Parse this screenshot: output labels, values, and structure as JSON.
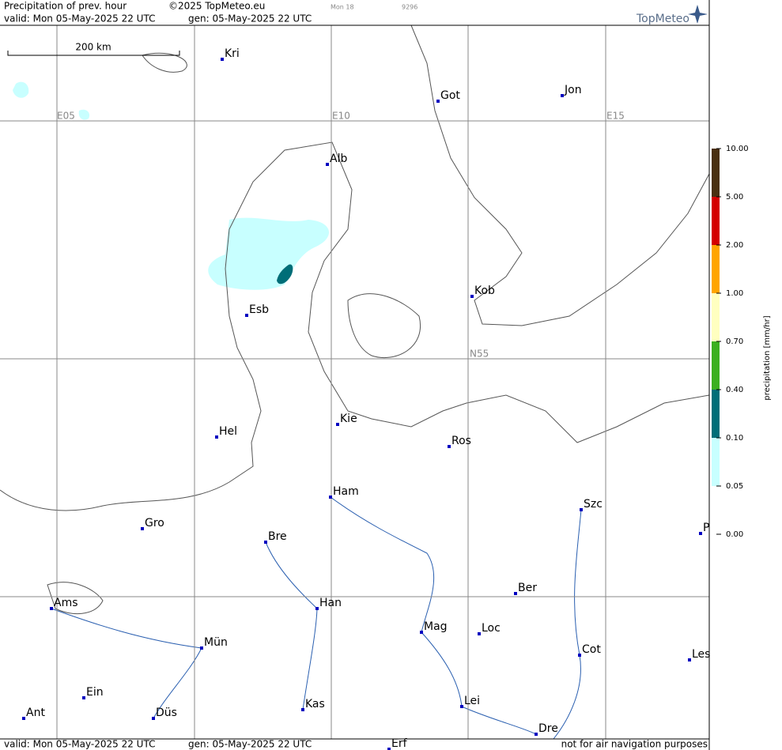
{
  "header": {
    "title": "Precipitation of prev. hour",
    "copyright": "©2025 TopMeteo.eu",
    "run": "Mon 18",
    "code": "9296",
    "valid": "valid:  Mon  05-May-2025  22 UTC",
    "generated": "gen: 05-May-2025 22 UTC",
    "logo": "TopMeteo"
  },
  "scale_bar": "200 km",
  "grid_labels": [
    "E05",
    "E10",
    "E15",
    "N55"
  ],
  "cities": [
    "Kri",
    "Got",
    "Jon",
    "Alb",
    "Kob",
    "Esb",
    "Kie",
    "Hel",
    "Ros",
    "Ham",
    "Szc",
    "Gro",
    "Bre",
    "P",
    "Ber",
    "Ams",
    "Han",
    "Mag",
    "Loc",
    "Mün",
    "Cot",
    "Les",
    "Ein",
    "Kas",
    "Lei",
    "Ant",
    "Düs",
    "Dre",
    "Erf"
  ],
  "legend": {
    "title": "precipitation [mm/hr]",
    "labels": [
      "10.00",
      "5.00",
      "2.00",
      "1.00",
      "0.70",
      "0.40",
      "0.10",
      "0.05",
      "0.00"
    ],
    "colors": [
      "#4a3010",
      "#d40000",
      "#ffa500",
      "#ffffc0",
      "#3cb020",
      "#006e78",
      "#c8ffff"
    ]
  },
  "footer": {
    "valid": "valid:  Mon  05-May-2025  22 UTC",
    "generated": "gen: 05-May-2025 22 UTC",
    "disclaimer": "not for air navigation purposes"
  }
}
